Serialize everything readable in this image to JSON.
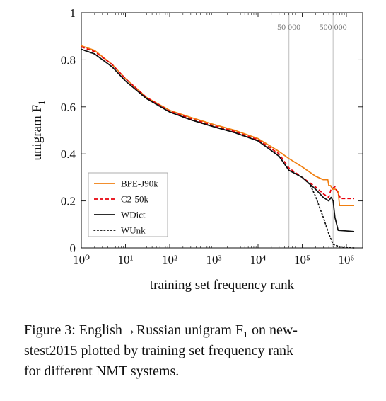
{
  "chart_data": {
    "type": "line",
    "title": "",
    "xlabel": "training set frequency rank",
    "ylabel": "unigram F1",
    "xscale": "log",
    "xlim": [
      1,
      1500000
    ],
    "ylim": [
      0,
      1
    ],
    "xtick_labels": [
      "10^0",
      "10^1",
      "10^2",
      "10^3",
      "10^4",
      "10^5",
      "10^6"
    ],
    "ytick_labels": [
      "0",
      "0.2",
      "0.4",
      "0.6",
      "0.8",
      "1"
    ],
    "vertical_lines": [
      {
        "x": 50000,
        "label": "50 000"
      },
      {
        "x": 500000,
        "label": "500 000"
      }
    ],
    "legend_position": "lower-left",
    "grid": false,
    "series": [
      {
        "name": "BPE-J90k",
        "color": "#f07f10",
        "style": "solid",
        "points": [
          [
            1,
            0.86
          ],
          [
            2,
            0.84
          ],
          [
            5,
            0.78
          ],
          [
            10,
            0.72
          ],
          [
            30,
            0.64
          ],
          [
            100,
            0.585
          ],
          [
            300,
            0.555
          ],
          [
            1000,
            0.525
          ],
          [
            3000,
            0.5
          ],
          [
            10000,
            0.465
          ],
          [
            30000,
            0.41
          ],
          [
            50000,
            0.38
          ],
          [
            100000,
            0.345
          ],
          [
            200000,
            0.305
          ],
          [
            300000,
            0.29
          ],
          [
            380000,
            0.29
          ],
          [
            400000,
            0.265
          ],
          [
            440000,
            0.265
          ],
          [
            480000,
            0.25
          ],
          [
            560000,
            0.25
          ],
          [
            650000,
            0.24
          ],
          [
            700000,
            0.18
          ],
          [
            1500000,
            0.18
          ]
        ]
      },
      {
        "name": "C2-50k",
        "color": "#e8000b",
        "style": "dashed",
        "points": [
          [
            1,
            0.855
          ],
          [
            2,
            0.835
          ],
          [
            5,
            0.78
          ],
          [
            10,
            0.72
          ],
          [
            30,
            0.64
          ],
          [
            100,
            0.582
          ],
          [
            300,
            0.55
          ],
          [
            1000,
            0.52
          ],
          [
            3000,
            0.495
          ],
          [
            10000,
            0.46
          ],
          [
            30000,
            0.4
          ],
          [
            50000,
            0.34
          ],
          [
            100000,
            0.3
          ],
          [
            200000,
            0.26
          ],
          [
            300000,
            0.23
          ],
          [
            400000,
            0.215
          ],
          [
            450000,
            0.25
          ],
          [
            550000,
            0.26
          ],
          [
            650000,
            0.23
          ],
          [
            750000,
            0.21
          ],
          [
            1500000,
            0.21
          ]
        ]
      },
      {
        "name": "WDict",
        "color": "#111111",
        "style": "solid",
        "points": [
          [
            1,
            0.845
          ],
          [
            2,
            0.825
          ],
          [
            5,
            0.77
          ],
          [
            10,
            0.71
          ],
          [
            30,
            0.635
          ],
          [
            100,
            0.578
          ],
          [
            300,
            0.545
          ],
          [
            1000,
            0.515
          ],
          [
            3000,
            0.49
          ],
          [
            10000,
            0.455
          ],
          [
            30000,
            0.39
          ],
          [
            50000,
            0.33
          ],
          [
            100000,
            0.3
          ],
          [
            200000,
            0.25
          ],
          [
            300000,
            0.215
          ],
          [
            400000,
            0.2
          ],
          [
            450000,
            0.215
          ],
          [
            500000,
            0.2
          ],
          [
            550000,
            0.13
          ],
          [
            650000,
            0.075
          ],
          [
            1500000,
            0.07
          ]
        ]
      },
      {
        "name": "WUnk",
        "color": "#111111",
        "style": "dotted",
        "points": [
          [
            1,
            0.845
          ],
          [
            2,
            0.825
          ],
          [
            5,
            0.77
          ],
          [
            10,
            0.71
          ],
          [
            30,
            0.635
          ],
          [
            100,
            0.578
          ],
          [
            300,
            0.545
          ],
          [
            1000,
            0.515
          ],
          [
            3000,
            0.49
          ],
          [
            10000,
            0.455
          ],
          [
            30000,
            0.39
          ],
          [
            50000,
            0.33
          ],
          [
            100000,
            0.3
          ],
          [
            150000,
            0.27
          ],
          [
            200000,
            0.22
          ],
          [
            300000,
            0.13
          ],
          [
            400000,
            0.06
          ],
          [
            500000,
            0.015
          ],
          [
            700000,
            0.005
          ],
          [
            1500000,
            0.0
          ]
        ]
      }
    ]
  },
  "caption": {
    "line1": "Figure 3: English→Russian unigram F₁ on new-",
    "line2": "stest2015 plotted by training set frequency rank",
    "line3": "for different NMT systems."
  }
}
